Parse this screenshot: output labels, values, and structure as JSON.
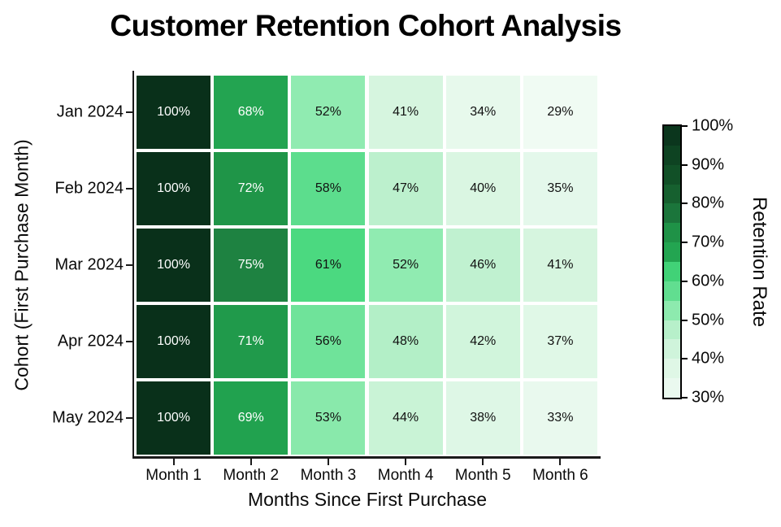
{
  "chart_data": {
    "type": "heatmap",
    "title": "Customer Retention Cohort Analysis",
    "xlabel": "Months Since First Purchase",
    "ylabel": "Cohort (First Purchase Month)",
    "rows": [
      "Jan 2024",
      "Feb 2024",
      "Mar 2024",
      "Apr 2024",
      "May 2024"
    ],
    "columns": [
      "Month 1",
      "Month 2",
      "Month 3",
      "Month 4",
      "Month 5",
      "Month 6"
    ],
    "values": [
      [
        100,
        68,
        52,
        41,
        34,
        29
      ],
      [
        100,
        72,
        58,
        47,
        40,
        35
      ],
      [
        100,
        75,
        61,
        52,
        46,
        41
      ],
      [
        100,
        71,
        56,
        48,
        42,
        37
      ],
      [
        100,
        69,
        53,
        44,
        38,
        33
      ]
    ],
    "value_suffix": "%",
    "grid": "off",
    "legend_position": "right-colorbar",
    "colorbar": {
      "label": "Retention Rate",
      "min": 30,
      "max": 100,
      "step": 5,
      "ticks": [
        {
          "value": 100,
          "label": "100%"
        },
        {
          "value": 90,
          "label": "90%"
        },
        {
          "value": 80,
          "label": "80%"
        },
        {
          "value": 70,
          "label": "70%"
        },
        {
          "value": 60,
          "label": "60%"
        },
        {
          "value": 50,
          "label": "50%"
        },
        {
          "value": 40,
          "label": "40%"
        },
        {
          "value": 30,
          "label": "30%"
        }
      ]
    },
    "colormap": {
      "name": "greens",
      "anchors": [
        [
          29,
          "#f0fbf3"
        ],
        [
          33,
          "#e9f9ee"
        ],
        [
          36,
          "#e2f8e9"
        ],
        [
          40,
          "#daf6e2"
        ],
        [
          43,
          "#cdf4d9"
        ],
        [
          47,
          "#bcf0cd"
        ],
        [
          51,
          "#97ecb6"
        ],
        [
          54,
          "#82e8a6"
        ],
        [
          58,
          "#5cdd8d"
        ],
        [
          62,
          "#45d87c"
        ],
        [
          66,
          "#25a854"
        ],
        [
          70,
          "#20a04d"
        ],
        [
          73,
          "#1f8f46"
        ],
        [
          76,
          "#1d7b3e"
        ],
        [
          85,
          "#135629"
        ],
        [
          100,
          "#09301a"
        ]
      ],
      "light_text_threshold": 65,
      "light_text_color": "#ffffff",
      "dark_text_color": "#111111"
    }
  }
}
